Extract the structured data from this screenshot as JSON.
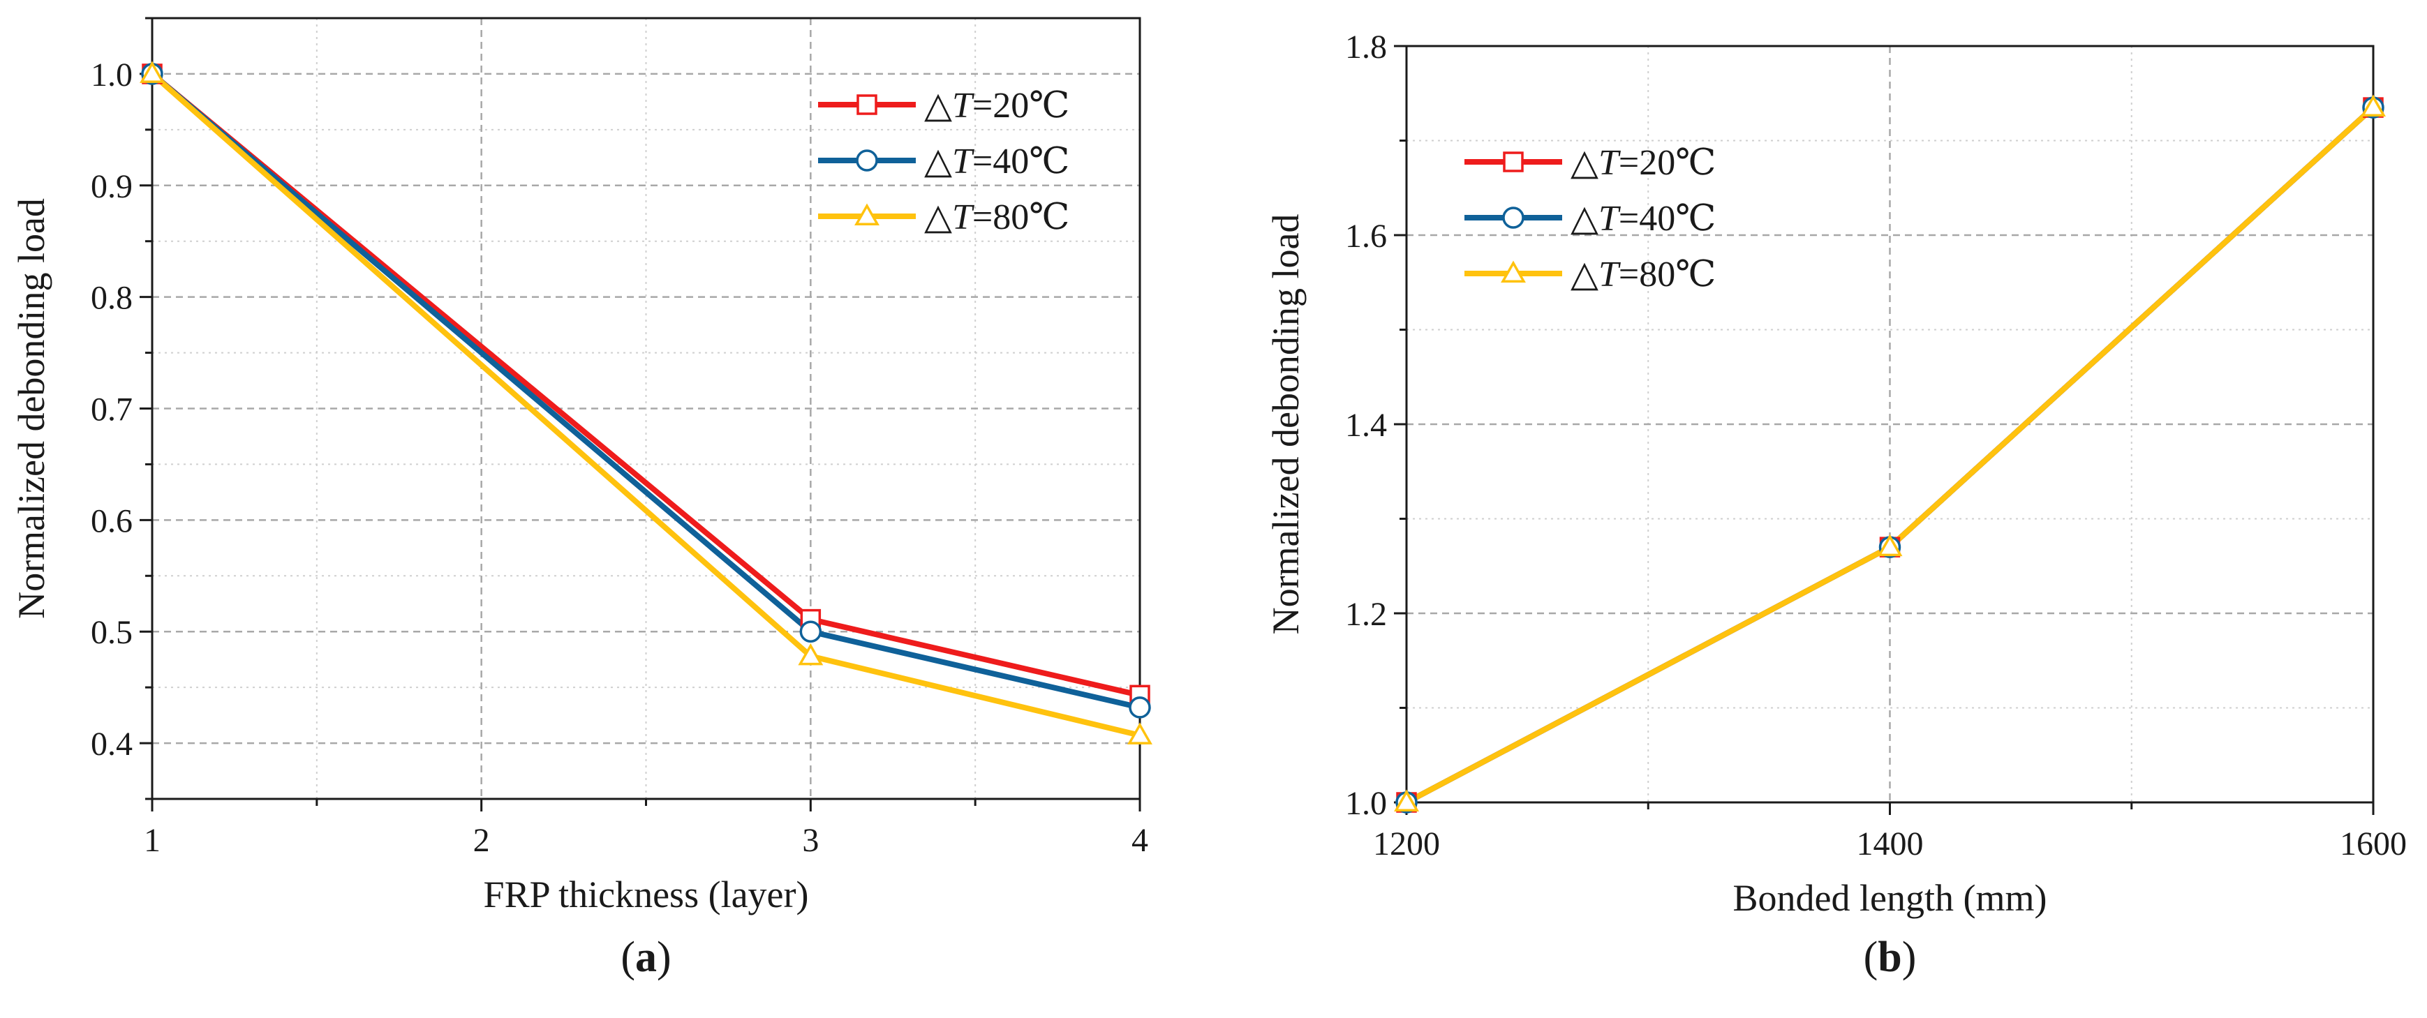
{
  "chart_data": [
    {
      "type": "line",
      "panel_label": "(a)",
      "panel_label_parts": [
        "(",
        "a",
        ")"
      ],
      "xlabel": "FRP thickness (layer)",
      "ylabel": "Normalized debonding load",
      "xlim": [
        1,
        4
      ],
      "ylim": [
        0.35,
        1.05
      ],
      "xticks": [
        1,
        2,
        3,
        4
      ],
      "xtick_labels": [
        "1",
        "2",
        "3",
        "4"
      ],
      "yticks": [
        0.4,
        0.5,
        0.6,
        0.7,
        0.8,
        0.9,
        1.0
      ],
      "ytick_labels": [
        "0.4",
        "0.5",
        "0.6",
        "0.7",
        "0.8",
        "0.9",
        "1.0"
      ],
      "grid": true,
      "legend_position": "top-right",
      "x": [
        1,
        3,
        4
      ],
      "series": [
        {
          "name": "△T=20℃",
          "name_parts": [
            "△",
            "T",
            "=20℃"
          ],
          "color": "#ee1c1c",
          "marker": "square",
          "values": [
            1.0,
            0.511,
            0.443
          ]
        },
        {
          "name": "△T=40℃",
          "name_parts": [
            "△",
            "T",
            "=40℃"
          ],
          "color": "#0f6199",
          "marker": "circle",
          "values": [
            1.0,
            0.5,
            0.432
          ]
        },
        {
          "name": "△T=80℃",
          "name_parts": [
            "△",
            "T",
            "=80℃"
          ],
          "color": "#ffc20e",
          "marker": "triangle",
          "values": [
            1.0,
            0.478,
            0.407
          ]
        }
      ]
    },
    {
      "type": "line",
      "panel_label": "(b)",
      "panel_label_parts": [
        "(",
        "b",
        ")"
      ],
      "xlabel": "Bonded length (mm)",
      "ylabel": "Normalized debonding load",
      "xlim": [
        1200,
        1600
      ],
      "ylim": [
        1.0,
        1.8
      ],
      "xticks": [
        1200,
        1400,
        1600
      ],
      "xtick_labels": [
        "1200",
        "1400",
        "1600"
      ],
      "yticks": [
        1.0,
        1.2,
        1.4,
        1.6,
        1.8
      ],
      "ytick_labels": [
        "1.0",
        "1.2",
        "1.4",
        "1.6",
        "1.8"
      ],
      "grid": true,
      "legend_position": "top-left",
      "x": [
        1200,
        1400,
        1600
      ],
      "series": [
        {
          "name": "△T=20℃",
          "name_parts": [
            "△",
            "T",
            "=20℃"
          ],
          "color": "#ee1c1c",
          "marker": "square",
          "values": [
            1.0,
            1.27,
            1.735
          ]
        },
        {
          "name": "△T=40℃",
          "name_parts": [
            "△",
            "T",
            "=40℃"
          ],
          "color": "#0f6199",
          "marker": "circle",
          "values": [
            1.0,
            1.27,
            1.735
          ]
        },
        {
          "name": "△T=80℃",
          "name_parts": [
            "△",
            "T",
            "=80℃"
          ],
          "color": "#ffc20e",
          "marker": "triangle",
          "values": [
            1.0,
            1.27,
            1.735
          ]
        }
      ]
    }
  ]
}
